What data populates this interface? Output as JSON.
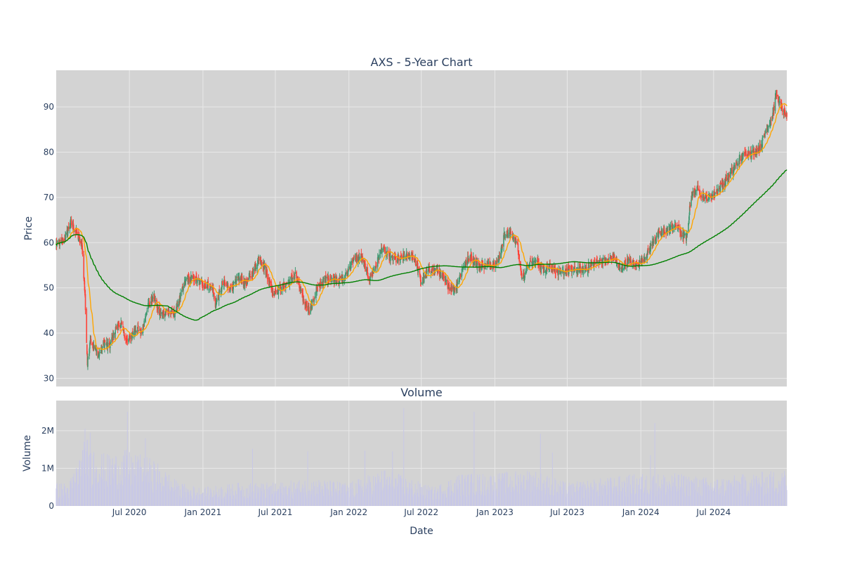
{
  "chart_data": [
    {
      "type": "candlestick",
      "title": "AXS - 5-Year Chart",
      "ylabel": "Price",
      "ylim": [
        28.2,
        98.1
      ],
      "yticks": [
        30,
        40,
        50,
        60,
        70,
        80,
        90
      ],
      "grid": true,
      "colors": {
        "increasing": "#3d9970",
        "decreasing": "#ff4136",
        "ma_short": "#ffa500",
        "ma_long": "#008000",
        "plot_bg": "#d3d3d3",
        "grid": "#e8e8e8"
      },
      "close_anchors": [
        [
          "2019-12-31",
          59.5
        ],
        [
          "2020-01-20",
          60.5
        ],
        [
          "2020-02-05",
          64.5
        ],
        [
          "2020-02-20",
          62
        ],
        [
          "2020-03-05",
          59
        ],
        [
          "2020-03-12",
          48
        ],
        [
          "2020-03-18",
          33
        ],
        [
          "2020-03-25",
          39
        ],
        [
          "2020-04-03",
          37
        ],
        [
          "2020-04-15",
          35
        ],
        [
          "2020-04-28",
          38
        ],
        [
          "2020-05-12",
          37
        ],
        [
          "2020-05-28",
          41
        ],
        [
          "2020-06-10",
          42
        ],
        [
          "2020-06-25",
          38
        ],
        [
          "2020-07-15",
          41
        ],
        [
          "2020-08-01",
          40
        ],
        [
          "2020-08-15",
          46
        ],
        [
          "2020-09-01",
          48
        ],
        [
          "2020-09-15",
          44
        ],
        [
          "2020-10-01",
          45
        ],
        [
          "2020-10-20",
          44
        ],
        [
          "2020-11-05",
          48
        ],
        [
          "2020-11-20",
          52
        ],
        [
          "2020-12-10",
          52
        ],
        [
          "2020-12-28",
          51
        ],
        [
          "2021-01-25",
          50
        ],
        [
          "2021-02-01",
          46
        ],
        [
          "2021-02-20",
          51
        ],
        [
          "2021-03-10",
          50
        ],
        [
          "2021-04-01",
          52
        ],
        [
          "2021-04-20",
          51
        ],
        [
          "2021-05-10",
          54
        ],
        [
          "2021-05-22",
          57
        ],
        [
          "2021-06-10",
          53
        ],
        [
          "2021-06-25",
          49
        ],
        [
          "2021-07-15",
          50
        ],
        [
          "2021-08-01",
          51
        ],
        [
          "2021-08-20",
          53
        ],
        [
          "2021-09-10",
          47
        ],
        [
          "2021-09-25",
          45
        ],
        [
          "2021-10-15",
          50
        ],
        [
          "2021-11-01",
          52
        ],
        [
          "2021-11-25",
          52
        ],
        [
          "2021-12-20",
          52
        ],
        [
          "2022-01-10",
          56
        ],
        [
          "2022-02-01",
          57
        ],
        [
          "2022-02-20",
          52
        ],
        [
          "2022-03-10",
          55
        ],
        [
          "2022-03-25",
          59
        ],
        [
          "2022-04-10",
          57
        ],
        [
          "2022-05-01",
          56
        ],
        [
          "2022-05-20",
          57
        ],
        [
          "2022-06-10",
          57
        ],
        [
          "2022-06-20",
          55
        ],
        [
          "2022-07-01",
          51
        ],
        [
          "2022-07-20",
          54
        ],
        [
          "2022-08-10",
          54
        ],
        [
          "2022-08-25",
          52
        ],
        [
          "2022-09-10",
          50
        ],
        [
          "2022-09-25",
          50
        ],
        [
          "2022-10-15",
          55
        ],
        [
          "2022-11-01",
          57
        ],
        [
          "2022-11-20",
          55
        ],
        [
          "2022-12-20",
          55
        ],
        [
          "2023-01-10",
          56
        ],
        [
          "2023-01-25",
          62
        ],
        [
          "2023-02-10",
          62
        ],
        [
          "2023-02-25",
          60
        ],
        [
          "2023-03-10",
          52
        ],
        [
          "2023-03-25",
          55
        ],
        [
          "2023-04-15",
          56
        ],
        [
          "2023-05-01",
          54
        ],
        [
          "2023-05-20",
          55
        ],
        [
          "2023-06-10",
          53
        ],
        [
          "2023-07-01",
          54
        ],
        [
          "2023-07-20",
          54
        ],
        [
          "2023-08-10",
          54
        ],
        [
          "2023-09-01",
          55
        ],
        [
          "2023-09-20",
          56
        ],
        [
          "2023-10-10",
          56
        ],
        [
          "2023-10-25",
          57
        ],
        [
          "2023-11-10",
          54
        ],
        [
          "2023-11-30",
          56
        ],
        [
          "2023-12-20",
          55
        ],
        [
          "2024-01-05",
          56
        ],
        [
          "2024-01-20",
          58
        ],
        [
          "2024-02-05",
          61
        ],
        [
          "2024-02-20",
          62
        ],
        [
          "2024-03-10",
          63
        ],
        [
          "2024-03-30",
          64
        ],
        [
          "2024-04-10",
          62
        ],
        [
          "2024-04-25",
          61
        ],
        [
          "2024-05-05",
          70
        ],
        [
          "2024-05-20",
          72
        ],
        [
          "2024-06-05",
          70
        ],
        [
          "2024-06-20",
          70
        ],
        [
          "2024-07-05",
          71
        ],
        [
          "2024-07-25",
          73
        ],
        [
          "2024-08-10",
          75
        ],
        [
          "2024-08-25",
          77
        ],
        [
          "2024-09-10",
          79
        ],
        [
          "2024-09-25",
          80
        ],
        [
          "2024-10-10",
          80
        ],
        [
          "2024-10-25",
          81
        ],
        [
          "2024-11-10",
          85
        ],
        [
          "2024-11-25",
          88
        ],
        [
          "2024-12-05",
          93
        ],
        [
          "2024-12-15",
          90
        ],
        [
          "2024-12-31",
          88
        ]
      ],
      "x_range": [
        "2019-12-31",
        "2024-12-31"
      ]
    },
    {
      "type": "bar",
      "title": "Volume",
      "xlabel": "Date",
      "ylabel": "Volume",
      "ylim": [
        0,
        2800000
      ],
      "yticks": [
        {
          "value": 0,
          "label": "0"
        },
        {
          "value": 1000000,
          "label": "1M"
        },
        {
          "value": 2000000,
          "label": "2M"
        }
      ],
      "xticks": [
        {
          "date": "2020-07-01",
          "label": "Jul 2020"
        },
        {
          "date": "2021-01-01",
          "label": "Jan 2021"
        },
        {
          "date": "2021-07-01",
          "label": "Jul 2021"
        },
        {
          "date": "2022-01-01",
          "label": "Jan 2022"
        },
        {
          "date": "2022-07-01",
          "label": "Jul 2022"
        },
        {
          "date": "2023-01-01",
          "label": "Jan 2023"
        },
        {
          "date": "2023-07-01",
          "label": "Jul 2023"
        },
        {
          "date": "2024-01-01",
          "label": "Jan 2024"
        },
        {
          "date": "2024-07-01",
          "label": "Jul 2024"
        }
      ],
      "bar_color": "#c8c8e6",
      "volume_anchors": [
        [
          "2019-12-31",
          500000
        ],
        [
          "2020-02-01",
          500000
        ],
        [
          "2020-03-15",
          1500000
        ],
        [
          "2020-05-01",
          1100000
        ],
        [
          "2020-06-20",
          1200000
        ],
        [
          "2020-09-01",
          1000000
        ],
        [
          "2020-11-01",
          500000
        ],
        [
          "2021-01-01",
          400000
        ],
        [
          "2021-04-01",
          500000
        ],
        [
          "2021-07-01",
          500000
        ],
        [
          "2021-10-01",
          600000
        ],
        [
          "2022-01-01",
          500000
        ],
        [
          "2022-04-01",
          800000
        ],
        [
          "2022-06-01",
          600000
        ],
        [
          "2022-08-01",
          400000
        ],
        [
          "2022-10-01",
          700000
        ],
        [
          "2023-01-01",
          700000
        ],
        [
          "2023-04-01",
          800000
        ],
        [
          "2023-07-01",
          500000
        ],
        [
          "2023-10-01",
          600000
        ],
        [
          "2024-01-01",
          700000
        ],
        [
          "2024-04-01",
          700000
        ],
        [
          "2024-07-01",
          600000
        ],
        [
          "2024-10-01",
          700000
        ],
        [
          "2024-12-31",
          800000
        ]
      ],
      "volume_spikes": [
        [
          "2020-03-12",
          2050000
        ],
        [
          "2020-03-25",
          1950000
        ],
        [
          "2020-06-26",
          2500000
        ],
        [
          "2020-08-10",
          1800000
        ],
        [
          "2021-05-05",
          1520000
        ],
        [
          "2021-09-20",
          1450000
        ],
        [
          "2022-02-10",
          1470000
        ],
        [
          "2022-04-20",
          1450000
        ],
        [
          "2022-05-18",
          2600000
        ],
        [
          "2022-11-10",
          2500000
        ],
        [
          "2022-12-10",
          1780000
        ],
        [
          "2023-04-25",
          1920000
        ],
        [
          "2023-05-25",
          1420000
        ],
        [
          "2024-02-05",
          2200000
        ],
        [
          "2024-01-25",
          1350000
        ]
      ]
    }
  ]
}
